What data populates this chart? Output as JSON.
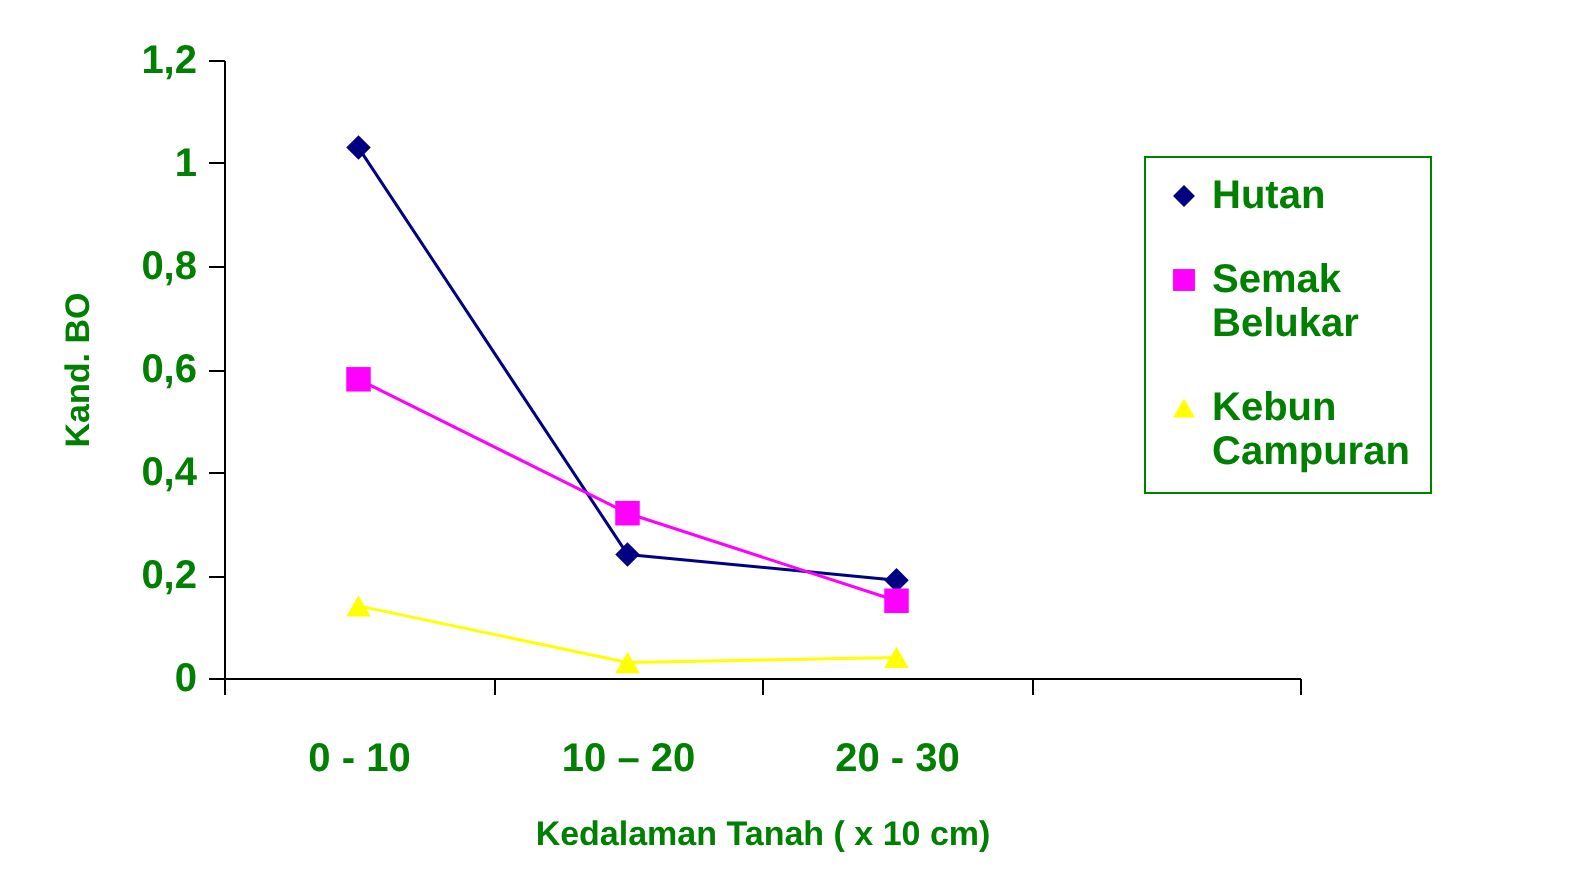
{
  "chart_data": {
    "type": "line",
    "xlabel": "Kedalaman Tanah ( x 10 cm)",
    "ylabel": "Kand. BO",
    "categories": [
      "0 - 10",
      "10 – 20",
      "20 - 30",
      null
    ],
    "series": [
      {
        "name": "Hutan",
        "color": "#000080",
        "marker": "diamond",
        "values": [
          1.03,
          0.24,
          0.19,
          null
        ]
      },
      {
        "name": "Semak Belukar",
        "color": "#ff00ff",
        "marker": "square",
        "values": [
          0.58,
          0.32,
          0.15,
          null
        ]
      },
      {
        "name": "Kebun Campuran",
        "color": "#ffff00",
        "marker": "triangle",
        "values": [
          0.14,
          0.03,
          0.04,
          null
        ]
      }
    ],
    "ylim": [
      0,
      1.2
    ],
    "yticks": [
      0,
      {
        "value": 0.2,
        "label": "0,2"
      },
      {
        "value": 0.4,
        "label": "0,4"
      },
      {
        "value": 0.6,
        "label": "0,6"
      },
      {
        "value": 0.8,
        "label": "0,8"
      },
      1,
      {
        "value": 1.2,
        "label": "1,2"
      }
    ],
    "grid": false,
    "legend": "right"
  }
}
